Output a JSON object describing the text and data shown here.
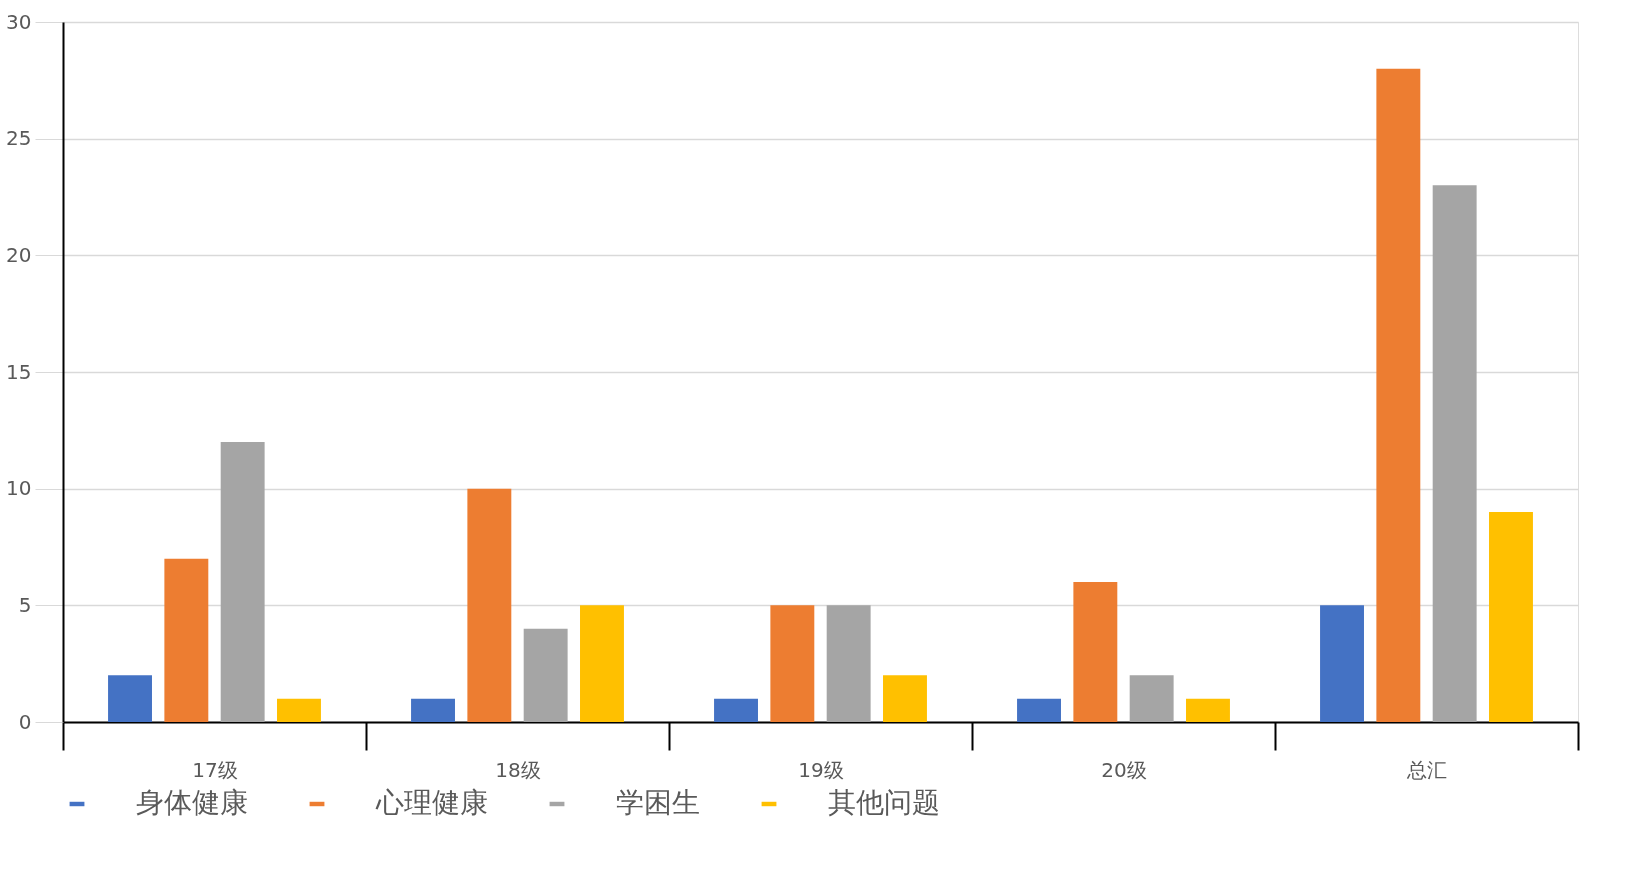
{
  "chart_data": {
    "type": "bar",
    "categories": [
      "17级",
      "18级",
      "19级",
      "20级",
      "总汇"
    ],
    "series": [
      {
        "name": "身体健康",
        "color": "#4472c4",
        "values": [
          2,
          1,
          1,
          1,
          5
        ]
      },
      {
        "name": "心理健康",
        "color": "#ed7d31",
        "values": [
          7,
          10,
          5,
          6,
          28
        ]
      },
      {
        "name": "学困生",
        "color": "#a5a5a5",
        "values": [
          12,
          4,
          5,
          2,
          23
        ]
      },
      {
        "name": "其他问题",
        "color": "#ffc000",
        "values": [
          1,
          5,
          2,
          1,
          9
        ]
      }
    ],
    "ylim": [
      0,
      30
    ],
    "yticks": [
      0,
      5,
      10,
      15,
      20,
      25,
      30
    ],
    "grid": "y",
    "legend": "bottom"
  }
}
